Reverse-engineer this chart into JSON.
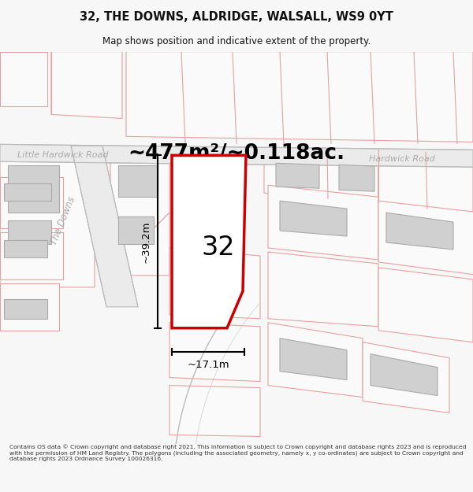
{
  "title": "32, THE DOWNS, ALDRIDGE, WALSALL, WS9 0YT",
  "subtitle": "Map shows position and indicative extent of the property.",
  "area_label": "~477m²/~0.118ac.",
  "road_label_left": "Little Hardwick Road",
  "road_label_right": "Hardwick Road",
  "road_label_diag": "The Downs",
  "plot_number": "32",
  "dim_height": "~39.2m",
  "dim_width": "~17.1m",
  "footer": "Contains OS data © Crown copyright and database right 2021. This information is subject to Crown copyright and database rights 2023 and is reproduced with the permission of HM Land Registry. The polygons (including the associated geometry, namely x, y co-ordinates) are subject to Crown copyright and database rights 2023 Ordnance Survey 100026316.",
  "bg_color": "#f7f7f7",
  "map_bg": "#ffffff",
  "plot_outline_color": "#cc0000",
  "faint_line_color": "#e8a0a0",
  "road_border_color": "#bbbbbb",
  "building_fill": "#d0d0d0",
  "road_fill": "#ebebeb"
}
